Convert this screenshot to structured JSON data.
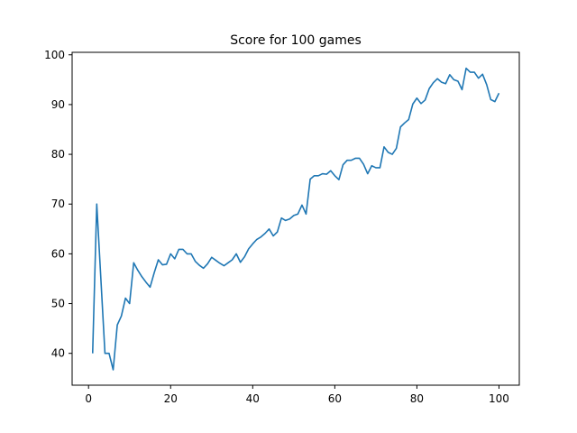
{
  "chart_data": {
    "type": "line",
    "title": "Score for 100 games",
    "xlabel": "",
    "ylabel": "",
    "xlim": [
      -4,
      104.95
    ],
    "ylim": [
      33.6,
      100.5
    ],
    "x_ticks": [
      0,
      20,
      40,
      60,
      80,
      100
    ],
    "y_ticks": [
      40,
      50,
      60,
      70,
      80,
      90,
      100
    ],
    "grid": false,
    "line_color": "#1f77b4",
    "series": [
      {
        "x": [
          1,
          2,
          3,
          4,
          5,
          6,
          7,
          8,
          9,
          10,
          11,
          12,
          13,
          14,
          15,
          16,
          17,
          18,
          19,
          20,
          21,
          22,
          23,
          24,
          25,
          26,
          27,
          28,
          29,
          30,
          31,
          32,
          33,
          34,
          35,
          36,
          37,
          38,
          39,
          40,
          41,
          42,
          43,
          44,
          45,
          46,
          47,
          48,
          49,
          50,
          51,
          52,
          53,
          54,
          55,
          56,
          57,
          58,
          59,
          60,
          61,
          62,
          63,
          64,
          65,
          66,
          67,
          68,
          69,
          70,
          71,
          72,
          73,
          74,
          75,
          76,
          77,
          78,
          79,
          80,
          81,
          82,
          83,
          84,
          85,
          86,
          87,
          88,
          89,
          90,
          91,
          92,
          93,
          94,
          95,
          96,
          97,
          98,
          99,
          100
        ],
        "y": [
          40.0,
          70.0,
          55.0,
          40.0,
          40.0,
          36.7,
          45.7,
          47.5,
          51.1,
          50.0,
          58.2,
          56.7,
          55.4,
          54.3,
          53.3,
          56.2,
          58.8,
          57.8,
          57.9,
          60.0,
          59.0,
          60.9,
          60.9,
          60.0,
          60.0,
          58.5,
          57.7,
          57.1,
          58.0,
          59.3,
          58.7,
          58.1,
          57.6,
          58.2,
          58.8,
          60.0,
          58.3,
          59.4,
          61.0,
          62.0,
          62.9,
          63.4,
          64.1,
          65.0,
          63.6,
          64.4,
          67.2,
          66.7,
          67.0,
          67.7,
          68.0,
          69.8,
          68.0,
          75.0,
          75.7,
          75.7,
          76.1,
          76.0,
          76.7,
          75.7,
          74.9,
          77.9,
          78.8,
          78.8,
          79.2,
          79.2,
          78.0,
          76.1,
          77.7,
          77.3,
          77.3,
          81.5,
          80.4,
          80.0,
          81.2,
          85.5,
          86.3,
          87.0,
          90.1,
          91.3,
          90.2,
          90.9,
          93.2,
          94.4,
          95.2,
          94.5,
          94.2,
          96.0,
          95.0,
          94.7,
          93.0,
          97.3,
          96.5,
          96.5,
          95.3,
          96.1,
          94.0,
          91.0,
          90.6,
          92.3
        ]
      }
    ]
  }
}
